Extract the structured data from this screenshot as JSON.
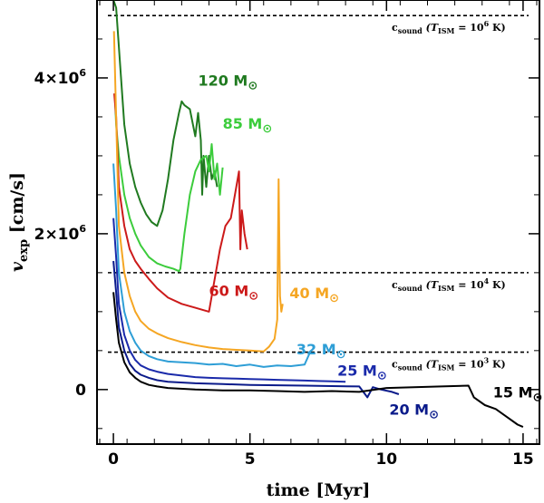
{
  "chart_data": {
    "type": "line",
    "title": "",
    "xlabel": "time [Myr]",
    "ylabel": "v_exp [cm/s]",
    "ylabel_main": "v",
    "ylabel_sub": "exp",
    "ylabel_unit": " [cm/s]",
    "xlim": [
      -0.6,
      15.6
    ],
    "ylim": [
      -700000,
      5000000
    ],
    "xticks": [
      0,
      5,
      10,
      15
    ],
    "xtick_labels": [
      "0",
      "5",
      "10",
      "15"
    ],
    "yticks": [
      0,
      2000000,
      4000000
    ],
    "ytick_labels": [
      "0",
      "2×10",
      "4×10"
    ],
    "ytick_exponents": [
      "",
      "6",
      "6"
    ],
    "hlines": [
      {
        "y": 4800000,
        "label": "c",
        "sub": "sound",
        "cond": " (T",
        "cond_sub": "ISM",
        "cond_tail": " = 10",
        "exp": "6",
        "unit": " K)"
      },
      {
        "y": 1500000,
        "label": "c",
        "sub": "sound",
        "cond": " (T",
        "cond_sub": "ISM",
        "cond_tail": " = 10",
        "exp": "4",
        "unit": " K)"
      },
      {
        "y": 480000,
        "label": "c",
        "sub": "sound",
        "cond": " (T",
        "cond_sub": "ISM",
        "cond_tail": " = 10",
        "exp": "3",
        "unit": " K)"
      }
    ],
    "series": [
      {
        "name": "120 M⊙",
        "mass": "120 M",
        "sun": "⊙",
        "color": "#207a20",
        "label_at": [
          3.1,
          3900000
        ],
        "x": [
          0.0,
          0.1,
          0.2,
          0.4,
          0.6,
          0.8,
          1.0,
          1.2,
          1.4,
          1.6,
          1.8,
          2.0,
          2.2,
          2.4,
          2.5,
          2.6,
          2.8,
          3.0,
          3.1,
          3.2,
          3.25,
          3.3,
          3.4,
          3.5,
          3.6,
          3.7,
          3.8
        ],
        "y": [
          5000000,
          4900000,
          4400000,
          3400000,
          2900000,
          2600000,
          2400000,
          2250000,
          2150000,
          2100000,
          2300000,
          2700000,
          3200000,
          3550000,
          3700000,
          3650000,
          3600000,
          3250000,
          3550000,
          3200000,
          2500000,
          3000000,
          2600000,
          3000000,
          2700000,
          2800000,
          2600000
        ]
      },
      {
        "name": "85 M⊙",
        "mass": "85 M",
        "sun": "⊙",
        "color": "#3ccc3c",
        "label_at": [
          4.0,
          3350000
        ],
        "x": [
          0.05,
          0.1,
          0.2,
          0.4,
          0.6,
          0.8,
          1.0,
          1.3,
          1.6,
          1.9,
          2.2,
          2.4,
          2.45,
          2.6,
          2.8,
          3.0,
          3.2,
          3.4,
          3.5,
          3.6,
          3.7,
          3.8,
          3.9,
          4.0
        ],
        "y": [
          3800000,
          3400000,
          3000000,
          2500000,
          2200000,
          2000000,
          1850000,
          1700000,
          1620000,
          1580000,
          1550000,
          1520000,
          1550000,
          2000000,
          2500000,
          2800000,
          2950000,
          3000000,
          2800000,
          3150000,
          2700000,
          2900000,
          2500000,
          2850000
        ]
      },
      {
        "name": "60 M⊙",
        "mass": "60 M",
        "sun": "⊙",
        "color": "#cc1a1a",
        "label_at": [
          3.5,
          1200000
        ],
        "x": [
          0.03,
          0.1,
          0.2,
          0.4,
          0.6,
          0.8,
          1.0,
          1.3,
          1.6,
          2.0,
          2.5,
          3.0,
          3.5,
          3.7,
          3.9,
          4.1,
          4.3,
          4.5,
          4.6,
          4.65,
          4.7,
          4.8,
          4.9
        ],
        "y": [
          3800000,
          3500000,
          2600000,
          2100000,
          1800000,
          1650000,
          1550000,
          1420000,
          1300000,
          1180000,
          1100000,
          1050000,
          1000000,
          1400000,
          1800000,
          2100000,
          2200000,
          2600000,
          2800000,
          1800000,
          2300000,
          2000000,
          1800000
        ]
      },
      {
        "name": "40 M⊙",
        "mass": "40 M",
        "sun": "⊙",
        "color": "#f5a623",
        "label_at": [
          6.45,
          1170000
        ],
        "x": [
          0.02,
          0.1,
          0.2,
          0.4,
          0.6,
          0.8,
          1.0,
          1.3,
          1.6,
          2.0,
          2.5,
          3.0,
          3.5,
          4.0,
          4.5,
          5.0,
          5.5,
          5.7,
          5.9,
          6.0,
          6.05,
          6.1,
          6.15,
          6.2
        ],
        "y": [
          4600000,
          3500000,
          2100000,
          1500000,
          1200000,
          1000000,
          880000,
          780000,
          720000,
          660000,
          610000,
          570000,
          540000,
          520000,
          510000,
          500000,
          490000,
          550000,
          650000,
          900000,
          2700000,
          1200000,
          1000000,
          1100000
        ]
      },
      {
        "name": "32 M⊙",
        "mass": "32 M",
        "sun": "⊙",
        "color": "#2e9ed6",
        "label_at": [
          6.7,
          450000
        ],
        "x": [
          0.0,
          0.1,
          0.2,
          0.4,
          0.6,
          0.8,
          1.0,
          1.3,
          1.6,
          2.0,
          2.5,
          3.0,
          3.5,
          4.0,
          4.5,
          5.0,
          5.5,
          6.0,
          6.5,
          7.0,
          7.2
        ],
        "y": [
          2900000,
          2300000,
          1500000,
          1000000,
          750000,
          600000,
          500000,
          430000,
          390000,
          360000,
          350000,
          340000,
          320000,
          330000,
          300000,
          320000,
          290000,
          310000,
          300000,
          320000,
          480000
        ]
      },
      {
        "name": "25 M⊙",
        "mass": "25 M",
        "sun": "⊙",
        "color": "#1a2aaa",
        "label_at": [
          8.2,
          180000
        ],
        "x": [
          0.0,
          0.1,
          0.2,
          0.4,
          0.6,
          0.8,
          1.0,
          1.3,
          1.6,
          2.0,
          2.5,
          3.0,
          3.5,
          4.0,
          4.5,
          5.0,
          5.5,
          6.0,
          6.5,
          7.0,
          7.5,
          8.0,
          8.5
        ],
        "y": [
          2200000,
          1700000,
          1100000,
          700000,
          500000,
          380000,
          310000,
          260000,
          230000,
          200000,
          180000,
          160000,
          150000,
          145000,
          140000,
          135000,
          130000,
          125000,
          120000,
          115000,
          110000,
          105000,
          100000
        ]
      },
      {
        "name": "20 M⊙",
        "mass": "20 M",
        "sun": "⊙",
        "color": "#0a1a8a",
        "label_at": [
          10.1,
          -320000
        ],
        "x": [
          0.0,
          0.1,
          0.2,
          0.4,
          0.6,
          0.8,
          1.0,
          1.3,
          1.6,
          2.0,
          3.0,
          4.0,
          5.0,
          6.0,
          7.0,
          8.0,
          9.0,
          9.3,
          9.5,
          9.8,
          10.2,
          10.45
        ],
        "y": [
          1650000,
          1250000,
          800000,
          500000,
          330000,
          240000,
          190000,
          150000,
          120000,
          100000,
          80000,
          70000,
          60000,
          55000,
          50000,
          45000,
          40000,
          -100000,
          30000,
          0,
          -30000,
          -60000
        ]
      },
      {
        "name": "15 M⊙",
        "mass": "15 M",
        "sun": "⊙",
        "color": "#000000",
        "label_at": [
          13.9,
          -100000
        ],
        "x": [
          0.0,
          0.1,
          0.2,
          0.4,
          0.6,
          0.8,
          1.0,
          1.3,
          1.6,
          2.0,
          3.0,
          4.0,
          5.0,
          6.0,
          7.0,
          8.0,
          9.0,
          10.0,
          11.0,
          12.0,
          13.0,
          13.2,
          13.6,
          14.0,
          14.4,
          14.8,
          15.0
        ],
        "y": [
          1250000,
          900000,
          600000,
          350000,
          220000,
          150000,
          100000,
          60000,
          40000,
          20000,
          0,
          -10000,
          -10000,
          -20000,
          -30000,
          -20000,
          -30000,
          20000,
          30000,
          40000,
          50000,
          -100000,
          -200000,
          -250000,
          -350000,
          -450000,
          -480000
        ]
      }
    ]
  }
}
